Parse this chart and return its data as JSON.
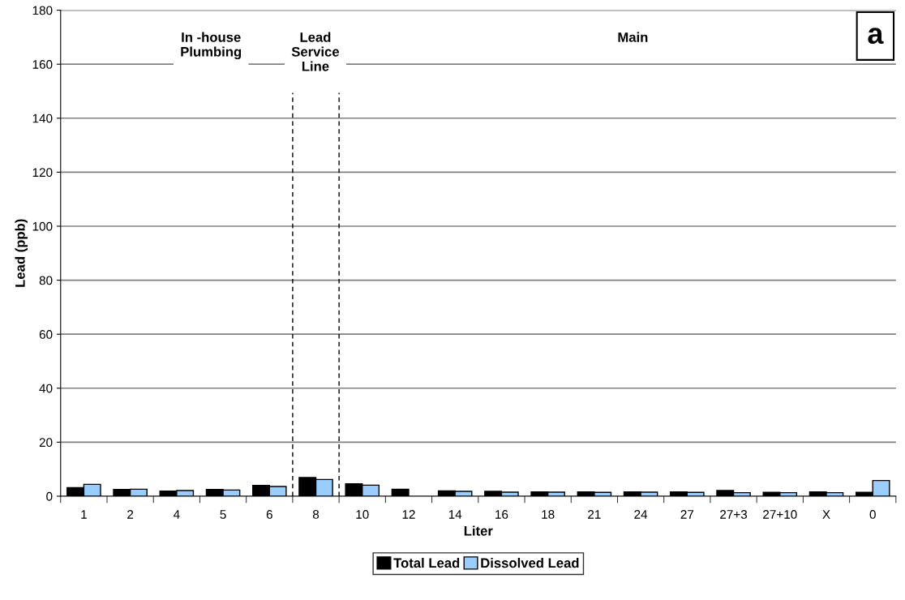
{
  "chart_data": {
    "type": "bar",
    "xlabel": "Liter",
    "ylabel": "Lead (ppb)",
    "categories": [
      "1",
      "2",
      "4",
      "5",
      "6",
      "8",
      "10",
      "12",
      "14",
      "16",
      "18",
      "21",
      "24",
      "27",
      "27+3",
      "27+10",
      "X",
      "0"
    ],
    "series": [
      {
        "name": "Total Lead",
        "color": "#000000",
        "values": [
          3.2,
          2.5,
          1.9,
          2.5,
          4.0,
          6.9,
          4.6,
          2.6,
          2.0,
          1.8,
          1.6,
          1.6,
          1.6,
          1.6,
          2.1,
          1.4,
          1.6,
          1.4
        ]
      },
      {
        "name": "Dissolved Lead",
        "color": "#99ccff",
        "values": [
          4.4,
          2.6,
          2.1,
          2.3,
          3.6,
          6.2,
          4.1,
          null,
          1.8,
          1.5,
          1.5,
          1.4,
          1.5,
          1.4,
          1.3,
          1.3,
          1.3,
          5.8
        ]
      }
    ],
    "ylim": [
      0,
      180
    ],
    "yticks": [
      0,
      20,
      40,
      60,
      80,
      100,
      120,
      140,
      160,
      180
    ],
    "grid": "y",
    "legend": "bottom",
    "annotations": [
      "In -house\nPlumbing",
      "Lead\nService\nLine",
      "Main",
      "a"
    ]
  }
}
